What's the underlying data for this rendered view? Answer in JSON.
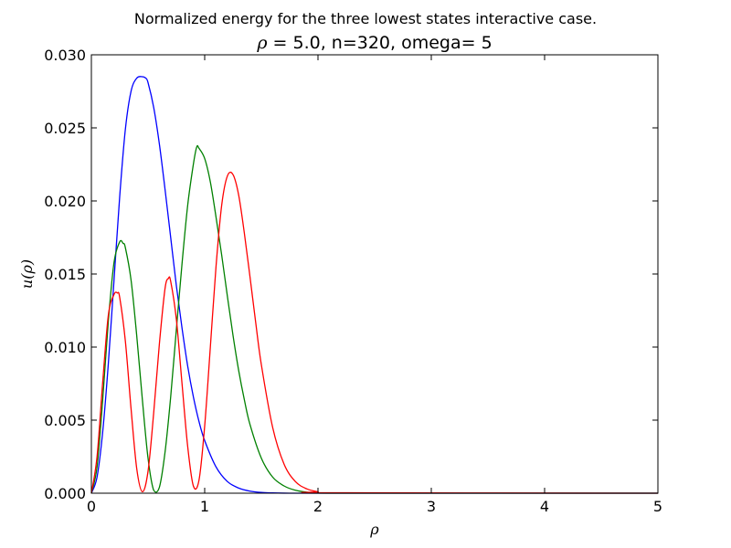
{
  "chart_data": {
    "type": "line",
    "suptitle": "Normalized energy for the three lowest states interactive case.",
    "title_symbol": "ρ",
    "title_rest": " = 5.0, n=320, omega= 5",
    "xlabel": "ρ",
    "ylabel": "u(ρ)",
    "xlim": [
      0,
      5
    ],
    "ylim": [
      0,
      0.03
    ],
    "xticks": [
      0,
      1,
      2,
      3,
      4,
      5
    ],
    "xtick_labels": [
      "0",
      "1",
      "2",
      "3",
      "4",
      "5"
    ],
    "yticks": [
      0,
      0.005,
      0.01,
      0.015,
      0.02,
      0.025,
      0.03
    ],
    "ytick_labels": [
      "0.000",
      "0.005",
      "0.010",
      "0.015",
      "0.020",
      "0.025",
      "0.030"
    ],
    "grid": false,
    "legend": "none",
    "series": [
      {
        "color": "#0000ff",
        "x": [
          0,
          0.05,
          0.1,
          0.15,
          0.2,
          0.25,
          0.3,
          0.35,
          0.4,
          0.45,
          0.48,
          0.5,
          0.55,
          0.6,
          0.65,
          0.7,
          0.75,
          0.8,
          0.85,
          0.9,
          0.95,
          1.0,
          1.1,
          1.2,
          1.3,
          1.4,
          1.5,
          1.6,
          1.7,
          1.8,
          1.9,
          2.0,
          2.1,
          2.2,
          5.0
        ],
        "y": [
          0,
          0.0011,
          0.0042,
          0.0089,
          0.0146,
          0.0203,
          0.0249,
          0.0275,
          0.0284,
          0.0285,
          0.0284,
          0.0281,
          0.0264,
          0.0239,
          0.0208,
          0.0175,
          0.0142,
          0.0113,
          0.0087,
          0.0066,
          0.0049,
          0.0036,
          0.0018,
          0.0008,
          0.00035,
          0.00014,
          5e-05,
          2e-05,
          5e-06,
          1e-06,
          0,
          0,
          0,
          0,
          0
        ]
      },
      {
        "color": "#008000",
        "x": [
          0,
          0.05,
          0.1,
          0.15,
          0.2,
          0.25,
          0.28,
          0.3,
          0.35,
          0.4,
          0.45,
          0.5,
          0.55,
          0.6,
          0.65,
          0.7,
          0.75,
          0.8,
          0.85,
          0.9,
          0.93,
          0.95,
          1.0,
          1.05,
          1.1,
          1.15,
          1.2,
          1.25,
          1.3,
          1.35,
          1.4,
          1.5,
          1.6,
          1.7,
          1.8,
          1.9,
          2.0,
          2.1,
          5.0
        ],
        "y": [
          0,
          0.0018,
          0.0064,
          0.0118,
          0.0158,
          0.0172,
          0.0171,
          0.0168,
          0.0146,
          0.0108,
          0.0064,
          0.0024,
          0.0002,
          0.0004,
          0.0028,
          0.0066,
          0.0112,
          0.0157,
          0.0197,
          0.0225,
          0.0237,
          0.0236,
          0.0229,
          0.0213,
          0.0189,
          0.0163,
          0.0135,
          0.0108,
          0.0084,
          0.0064,
          0.0047,
          0.0024,
          0.0011,
          0.0005,
          0.0002,
          7e-05,
          2e-05,
          5e-06,
          0
        ]
      },
      {
        "color": "#ff0000",
        "x": [
          0,
          0.05,
          0.1,
          0.15,
          0.2,
          0.23,
          0.25,
          0.3,
          0.35,
          0.4,
          0.45,
          0.5,
          0.55,
          0.6,
          0.65,
          0.68,
          0.7,
          0.75,
          0.8,
          0.85,
          0.9,
          0.95,
          1.0,
          1.05,
          1.1,
          1.15,
          1.2,
          1.25,
          1.3,
          1.35,
          1.4,
          1.45,
          1.5,
          1.6,
          1.7,
          1.8,
          1.9,
          2.0,
          2.1,
          5.0
        ],
        "y": [
          0,
          0.0025,
          0.0076,
          0.0122,
          0.0136,
          0.0137,
          0.0134,
          0.0104,
          0.0058,
          0.0017,
          0.0001,
          0.0015,
          0.0055,
          0.0102,
          0.014,
          0.0147,
          0.0145,
          0.0119,
          0.0075,
          0.0032,
          0.0005,
          0.0009,
          0.0046,
          0.01,
          0.0155,
          0.0197,
          0.0217,
          0.0218,
          0.0204,
          0.0178,
          0.0148,
          0.0117,
          0.0088,
          0.0045,
          0.002,
          0.0008,
          0.0003,
          0.0001,
          3e-05,
          0
        ]
      }
    ]
  }
}
